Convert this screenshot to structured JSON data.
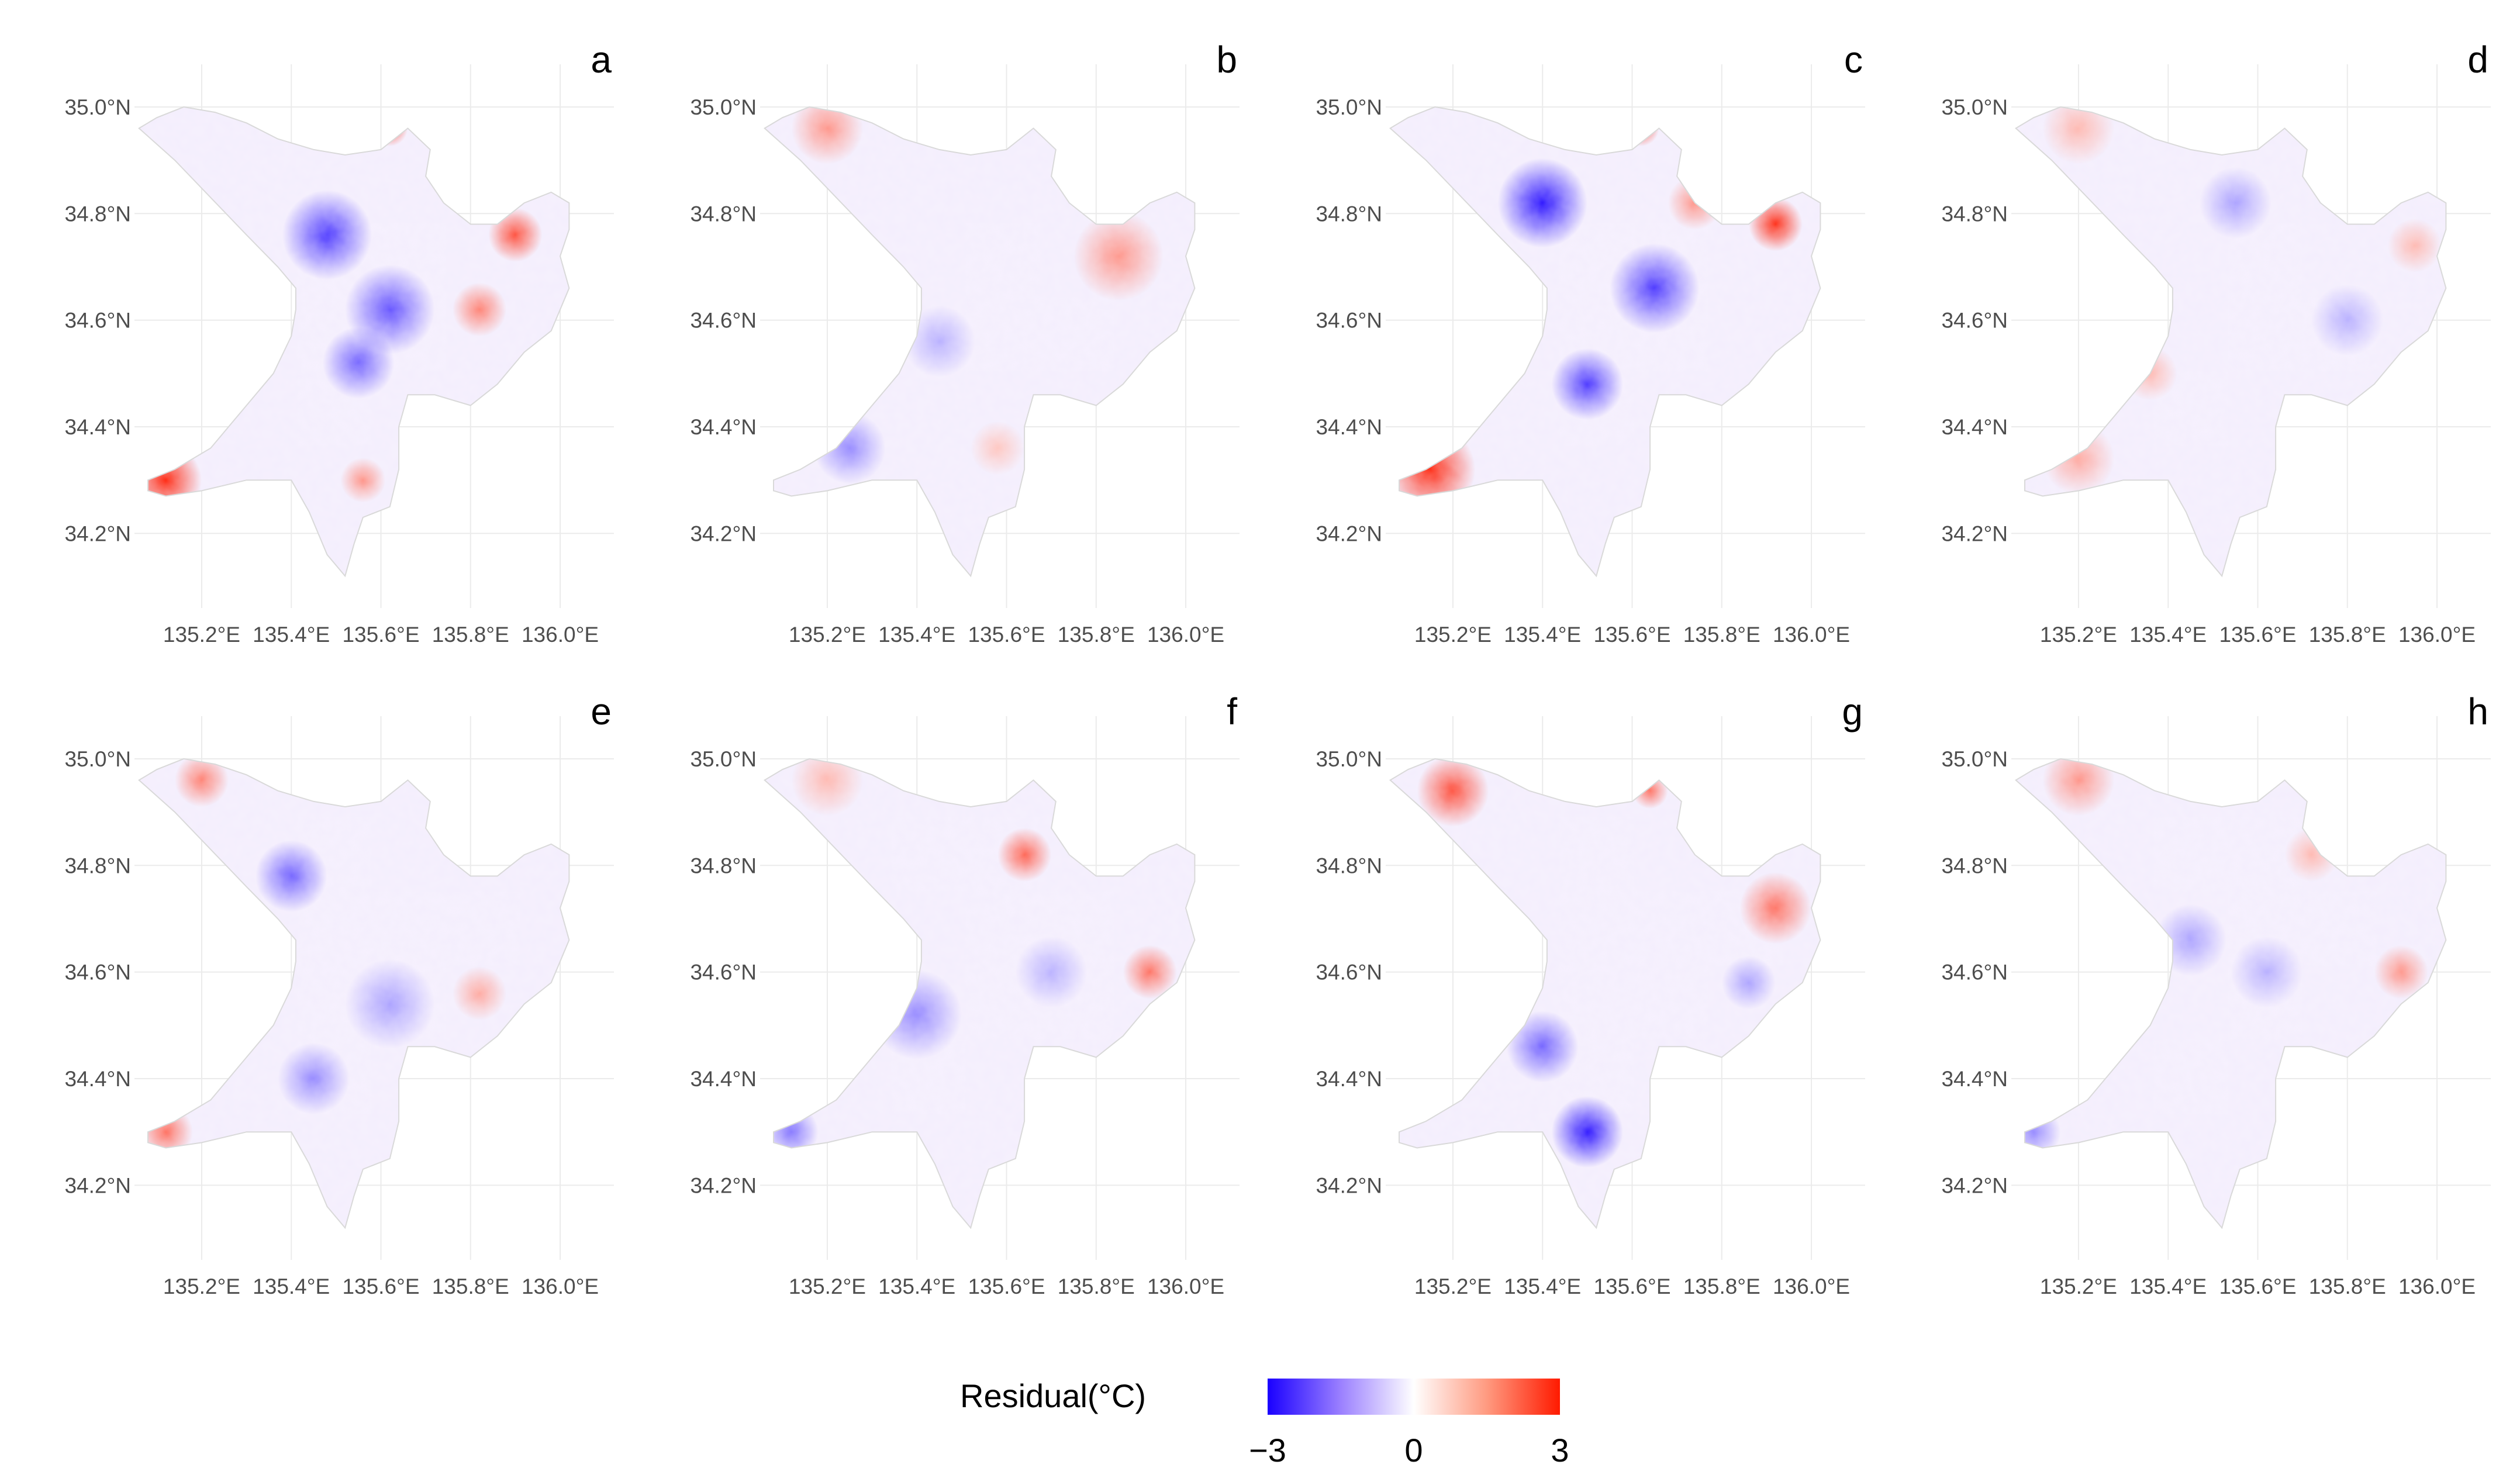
{
  "chart_data": {
    "type": "map",
    "legend": {
      "title": "Residual(°C)",
      "min": -3,
      "mid": 0,
      "max": 3,
      "tick_labels": [
        "−3",
        "0",
        "3"
      ],
      "colors": {
        "low": "#1a00ff",
        "mid": "#ffffff",
        "high": "#ff1a00"
      }
    },
    "axes": {
      "lon_range": [
        135.05,
        136.12
      ],
      "lat_range": [
        34.06,
        35.08
      ],
      "x_ticks": [
        {
          "value": 135.2,
          "label": "135.2°E"
        },
        {
          "value": 135.4,
          "label": "135.4°E"
        },
        {
          "value": 135.6,
          "label": "135.6°E"
        },
        {
          "value": 135.8,
          "label": "135.8°E"
        },
        {
          "value": 136.0,
          "label": "136.0°E"
        }
      ],
      "y_ticks": [
        {
          "value": 35.0,
          "label": "35.0°N"
        },
        {
          "value": 34.8,
          "label": "34.8°N"
        },
        {
          "value": 34.6,
          "label": "34.6°N"
        },
        {
          "value": 34.4,
          "label": "34.4°N"
        },
        {
          "value": 34.2,
          "label": "34.2°N"
        }
      ]
    },
    "region_outline": [
      [
        135.08,
        34.3
      ],
      [
        135.14,
        34.32
      ],
      [
        135.22,
        34.36
      ],
      [
        135.3,
        34.44
      ],
      [
        135.36,
        34.5
      ],
      [
        135.4,
        34.57
      ],
      [
        135.41,
        34.62
      ],
      [
        135.41,
        34.66
      ],
      [
        135.37,
        34.7
      ],
      [
        135.3,
        34.76
      ],
      [
        135.22,
        34.83
      ],
      [
        135.14,
        34.9
      ],
      [
        135.06,
        34.96
      ],
      [
        135.1,
        34.98
      ],
      [
        135.16,
        35.0
      ],
      [
        135.23,
        34.99
      ],
      [
        135.3,
        34.97
      ],
      [
        135.37,
        34.94
      ],
      [
        135.45,
        34.92
      ],
      [
        135.52,
        34.91
      ],
      [
        135.6,
        34.92
      ],
      [
        135.66,
        34.96
      ],
      [
        135.71,
        34.92
      ],
      [
        135.7,
        34.87
      ],
      [
        135.74,
        34.82
      ],
      [
        135.8,
        34.78
      ],
      [
        135.86,
        34.78
      ],
      [
        135.92,
        34.82
      ],
      [
        135.98,
        34.84
      ],
      [
        136.02,
        34.82
      ],
      [
        136.02,
        34.77
      ],
      [
        136.0,
        34.72
      ],
      [
        136.02,
        34.66
      ],
      [
        135.98,
        34.58
      ],
      [
        135.92,
        34.54
      ],
      [
        135.86,
        34.48
      ],
      [
        135.8,
        34.44
      ],
      [
        135.72,
        34.46
      ],
      [
        135.66,
        34.46
      ],
      [
        135.64,
        34.4
      ],
      [
        135.64,
        34.32
      ],
      [
        135.62,
        34.25
      ],
      [
        135.56,
        34.23
      ],
      [
        135.54,
        34.18
      ],
      [
        135.52,
        34.12
      ],
      [
        135.48,
        34.16
      ],
      [
        135.44,
        34.24
      ],
      [
        135.4,
        34.3
      ],
      [
        135.3,
        34.3
      ],
      [
        135.2,
        34.28
      ],
      [
        135.12,
        34.27
      ],
      [
        135.08,
        34.28
      ]
    ],
    "panels": [
      {
        "tag": "a",
        "hotspots": [
          {
            "lon": 135.12,
            "lat": 34.3,
            "value": 3.0,
            "r": 0.08
          },
          {
            "lon": 135.48,
            "lat": 34.76,
            "value": -2.5,
            "r": 0.1
          },
          {
            "lon": 135.62,
            "lat": 34.62,
            "value": -2.2,
            "r": 0.1
          },
          {
            "lon": 135.55,
            "lat": 34.52,
            "value": -2.0,
            "r": 0.08
          },
          {
            "lon": 135.9,
            "lat": 34.76,
            "value": 2.5,
            "r": 0.06
          },
          {
            "lon": 135.82,
            "lat": 34.62,
            "value": 1.8,
            "r": 0.06
          },
          {
            "lon": 135.62,
            "lat": 34.96,
            "value": 2.5,
            "r": 0.04
          },
          {
            "lon": 135.56,
            "lat": 34.3,
            "value": 1.5,
            "r": 0.05
          }
        ]
      },
      {
        "tag": "b",
        "hotspots": [
          {
            "lon": 135.2,
            "lat": 34.96,
            "value": 1.5,
            "r": 0.08
          },
          {
            "lon": 135.85,
            "lat": 34.72,
            "value": 1.5,
            "r": 0.1
          },
          {
            "lon": 135.25,
            "lat": 34.36,
            "value": -1.5,
            "r": 0.08
          },
          {
            "lon": 135.45,
            "lat": 34.56,
            "value": -1.0,
            "r": 0.08
          },
          {
            "lon": 135.58,
            "lat": 34.36,
            "value": 0.8,
            "r": 0.06
          }
        ]
      },
      {
        "tag": "c",
        "hotspots": [
          {
            "lon": 135.15,
            "lat": 34.32,
            "value": 3.0,
            "r": 0.1
          },
          {
            "lon": 135.4,
            "lat": 34.82,
            "value": -3.0,
            "r": 0.1
          },
          {
            "lon": 135.65,
            "lat": 34.66,
            "value": -2.5,
            "r": 0.1
          },
          {
            "lon": 135.5,
            "lat": 34.48,
            "value": -2.5,
            "r": 0.08
          },
          {
            "lon": 135.92,
            "lat": 34.78,
            "value": 3.0,
            "r": 0.06
          },
          {
            "lon": 135.62,
            "lat": 34.96,
            "value": 2.5,
            "r": 0.04
          },
          {
            "lon": 135.74,
            "lat": 34.82,
            "value": 1.5,
            "r": 0.06
          }
        ]
      },
      {
        "tag": "d",
        "hotspots": [
          {
            "lon": 135.2,
            "lat": 34.96,
            "value": 1.0,
            "r": 0.08
          },
          {
            "lon": 135.2,
            "lat": 34.34,
            "value": 1.2,
            "r": 0.08
          },
          {
            "lon": 135.36,
            "lat": 34.5,
            "value": 1.0,
            "r": 0.06
          },
          {
            "lon": 135.55,
            "lat": 34.82,
            "value": -1.2,
            "r": 0.08
          },
          {
            "lon": 135.8,
            "lat": 34.6,
            "value": -1.0,
            "r": 0.08
          },
          {
            "lon": 135.95,
            "lat": 34.74,
            "value": 1.0,
            "r": 0.06
          }
        ]
      },
      {
        "tag": "e",
        "hotspots": [
          {
            "lon": 135.12,
            "lat": 34.3,
            "value": 2.0,
            "r": 0.06
          },
          {
            "lon": 135.2,
            "lat": 34.96,
            "value": 1.8,
            "r": 0.06
          },
          {
            "lon": 135.4,
            "lat": 34.78,
            "value": -2.0,
            "r": 0.08
          },
          {
            "lon": 135.62,
            "lat": 34.54,
            "value": -1.2,
            "r": 0.1
          },
          {
            "lon": 135.82,
            "lat": 34.56,
            "value": 1.2,
            "r": 0.06
          },
          {
            "lon": 135.45,
            "lat": 34.4,
            "value": -1.5,
            "r": 0.08
          }
        ]
      },
      {
        "tag": "f",
        "hotspots": [
          {
            "lon": 135.64,
            "lat": 34.82,
            "value": 2.2,
            "r": 0.06
          },
          {
            "lon": 135.92,
            "lat": 34.6,
            "value": 2.0,
            "r": 0.06
          },
          {
            "lon": 135.2,
            "lat": 34.96,
            "value": 1.0,
            "r": 0.08
          },
          {
            "lon": 135.12,
            "lat": 34.3,
            "value": -1.8,
            "r": 0.06
          },
          {
            "lon": 135.4,
            "lat": 34.52,
            "value": -1.5,
            "r": 0.1
          },
          {
            "lon": 135.7,
            "lat": 34.6,
            "value": -1.0,
            "r": 0.08
          }
        ]
      },
      {
        "tag": "g",
        "hotspots": [
          {
            "lon": 135.5,
            "lat": 34.3,
            "value": -3.0,
            "r": 0.08
          },
          {
            "lon": 135.4,
            "lat": 34.46,
            "value": -2.0,
            "r": 0.08
          },
          {
            "lon": 135.2,
            "lat": 34.94,
            "value": 2.5,
            "r": 0.08
          },
          {
            "lon": 135.92,
            "lat": 34.72,
            "value": 2.0,
            "r": 0.08
          },
          {
            "lon": 135.64,
            "lat": 34.94,
            "value": 2.0,
            "r": 0.04
          },
          {
            "lon": 135.86,
            "lat": 34.58,
            "value": -1.2,
            "r": 0.06
          }
        ]
      },
      {
        "tag": "h",
        "hotspots": [
          {
            "lon": 135.2,
            "lat": 34.96,
            "value": 1.5,
            "r": 0.08
          },
          {
            "lon": 135.92,
            "lat": 34.6,
            "value": 1.5,
            "r": 0.06
          },
          {
            "lon": 135.72,
            "lat": 34.82,
            "value": 1.0,
            "r": 0.06
          },
          {
            "lon": 135.1,
            "lat": 34.3,
            "value": -1.5,
            "r": 0.06
          },
          {
            "lon": 135.45,
            "lat": 34.66,
            "value": -1.2,
            "r": 0.08
          },
          {
            "lon": 135.62,
            "lat": 34.6,
            "value": -1.0,
            "r": 0.08
          }
        ]
      }
    ]
  }
}
